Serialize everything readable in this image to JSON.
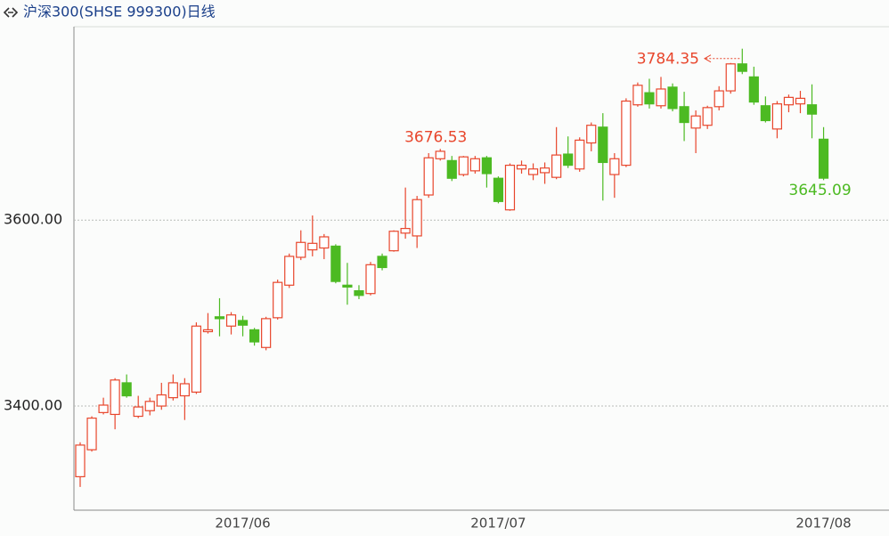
{
  "chart_data": {
    "type": "candlestick",
    "title": "沪深300(SHSE 999300)日线",
    "categories": [
      null,
      null,
      null,
      null,
      null,
      null,
      null,
      null,
      null,
      null,
      null,
      null,
      null,
      null,
      "2017/06",
      null,
      null,
      null,
      null,
      null,
      null,
      null,
      null,
      null,
      null,
      null,
      null,
      null,
      null,
      null,
      null,
      null,
      null,
      null,
      null,
      null,
      "2017/07",
      null,
      null,
      null,
      null,
      null,
      null,
      null,
      null,
      null,
      null,
      null,
      null,
      null,
      null,
      null,
      null,
      null,
      null,
      null,
      null,
      null,
      null,
      null,
      null,
      null,
      null,
      null,
      "2017/08"
    ],
    "open": [
      3324,
      3353,
      3393,
      3391,
      3425,
      3389,
      3395,
      3400,
      3409,
      3411,
      3415,
      3480,
      3496,
      3486,
      3492,
      3482,
      3463,
      3495,
      3530,
      3560,
      3568,
      3570,
      3572,
      3530,
      3524,
      3521,
      3561,
      3567,
      3586,
      3583,
      3627,
      3666,
      3664,
      3649,
      3653,
      3667,
      3645,
      3611,
      3655,
      3649,
      3651,
      3646,
      3671,
      3655,
      3683,
      3700,
      3649,
      3659,
      3724,
      3737,
      3723,
      3743,
      3722,
      3699,
      3702,
      3722,
      3739,
      3768,
      3754,
      3723,
      3698,
      3724,
      3725,
      3724,
      3687
    ],
    "high": [
      3361,
      3389,
      3409,
      3430,
      3434,
      3411,
      3409,
      3425,
      3434,
      3430,
      3490,
      3500,
      3516,
      3501,
      3497,
      3484,
      3496,
      3536,
      3564,
      3589,
      3605,
      3585,
      3574,
      3554,
      3530,
      3555,
      3564,
      3589,
      3635,
      3626,
      3672,
      3676.53,
      3669,
      3669,
      3669,
      3669,
      3647,
      3661,
      3664,
      3661,
      3662,
      3700,
      3690,
      3689,
      3705,
      3715,
      3672,
      3731,
      3748,
      3752,
      3754,
      3747,
      3738,
      3718,
      3723,
      3744,
      3769,
      3784.35,
      3765,
      3733,
      3728,
      3735,
      3739,
      3746,
      3700
    ],
    "low": [
      3313,
      3351,
      3391,
      3375,
      3409,
      3387,
      3390,
      3396,
      3406,
      3385,
      3413,
      3478,
      3475,
      3477,
      3475,
      3465,
      3460,
      3493,
      3527,
      3557,
      3561,
      3558,
      3532,
      3509,
      3515,
      3519,
      3546,
      3566,
      3580,
      3570,
      3624,
      3664,
      3642,
      3647,
      3650,
      3635,
      3618,
      3610,
      3650,
      3643,
      3639,
      3644,
      3656,
      3652,
      3674,
      3621,
      3624,
      3657,
      3722,
      3720,
      3720,
      3717,
      3685,
      3672,
      3698,
      3718,
      3736,
      3757,
      3724,
      3705,
      3688,
      3716,
      3715,
      3688,
      3643
    ],
    "close": [
      3358,
      3387,
      3401,
      3428,
      3411,
      3399,
      3405,
      3412,
      3425,
      3424,
      3486,
      3482,
      3494,
      3498,
      3487,
      3469,
      3494,
      3533,
      3561,
      3576,
      3575,
      3582,
      3534,
      3528,
      3519,
      3552,
      3549,
      3588,
      3591,
      3622,
      3667,
      3674,
      3645,
      3668,
      3666,
      3650,
      3620,
      3659,
      3659,
      3655,
      3656,
      3670,
      3659,
      3686,
      3702,
      3662,
      3666,
      3728,
      3745,
      3725,
      3741,
      3720,
      3705,
      3712,
      3721,
      3739,
      3768,
      3760,
      3727,
      3707,
      3725,
      3732,
      3731,
      3714,
      3645.09
    ],
    "up_color": "#e8462c",
    "down_color": "#4cba22",
    "ylim": [
      3288,
      3808
    ],
    "yticks": [
      {
        "value": 3400,
        "label": "3400.00"
      },
      {
        "value": 3600,
        "label": "3600.00"
      }
    ],
    "grid": true
  }
}
